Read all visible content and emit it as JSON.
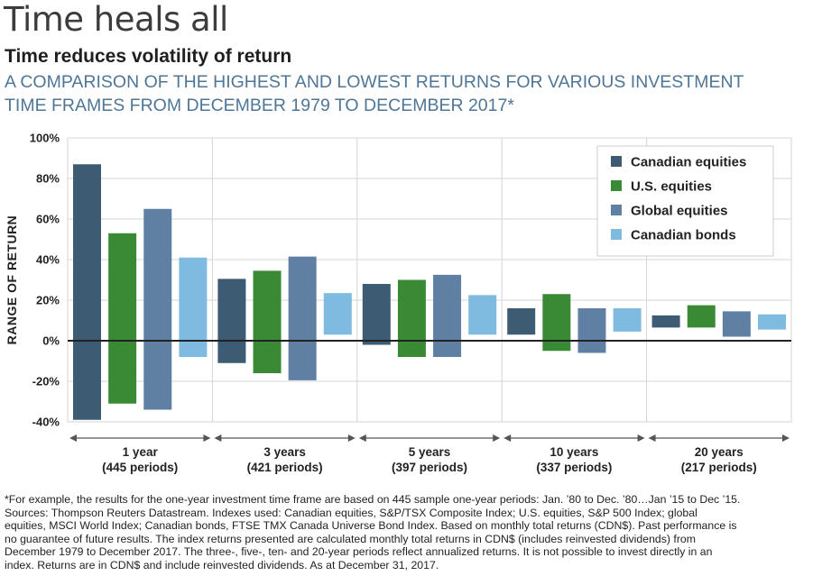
{
  "header": {
    "title": "Time heals all",
    "subtitle": "Time reduces volatility of return",
    "description_lines": [
      "A COMPARISON OF THE HIGHEST AND LOWEST RETURNS FOR VARIOUS INVESTMENT",
      "TIME FRAMES FROM DECEMBER 1979 TO DECEMBER 2017*"
    ]
  },
  "chart_data": {
    "type": "bar",
    "subtype": "floating-range",
    "ylabel": "RANGE OF RETURN",
    "ylim": [
      -40,
      100
    ],
    "yticks": [
      -40,
      -20,
      0,
      20,
      40,
      60,
      80,
      100
    ],
    "ytick_labels": [
      "-40%",
      "-20%",
      "0%",
      "20%",
      "40%",
      "60%",
      "80%",
      "100%"
    ],
    "grid": true,
    "legend_position": "top-right",
    "groups": [
      {
        "label": "1 year",
        "sublabel": "(445 periods)"
      },
      {
        "label": "3 years",
        "sublabel": "(421 periods)"
      },
      {
        "label": "5 years",
        "sublabel": "(397 periods)"
      },
      {
        "label": "10 years",
        "sublabel": "(337 periods)"
      },
      {
        "label": "20 years",
        "sublabel": "(217 periods)"
      }
    ],
    "series": [
      {
        "name": "Canadian equities",
        "color": "#3d5b72",
        "high": [
          87,
          30.5,
          28,
          16,
          12.5
        ],
        "low": [
          -39,
          -11,
          -2,
          3,
          6.5
        ]
      },
      {
        "name": "U.S. equities",
        "color": "#3a8a35",
        "high": [
          53,
          34.5,
          30,
          23,
          17.5
        ],
        "low": [
          -31,
          -16,
          -8,
          -5,
          6.5
        ]
      },
      {
        "name": "Global equities",
        "color": "#5f80a3",
        "high": [
          65,
          41.5,
          32.5,
          16,
          14.5
        ],
        "low": [
          -34,
          -19.5,
          -8,
          -6,
          2
        ]
      },
      {
        "name": "Canadian bonds",
        "color": "#7fbbe0",
        "high": [
          41,
          23.5,
          22.5,
          16,
          13
        ],
        "low": [
          -8,
          3,
          3,
          4.5,
          5.5
        ]
      }
    ]
  },
  "footnote_lines": [
    "*For example, the results for the one-year investment time frame are based on 445 sample one-year periods: Jan. ’80 to Dec. ’80…Jan ’15 to Dec ’15.",
    "Sources: Thompson Reuters Datastream. Indexes used: Canadian equities, S&P/TSX Composite Index; U.S. equities, S&P 500 Index; global",
    "equities, MSCI World Index; Canadian bonds, FTSE TMX Canada Universe Bond Index. Based on monthly total returns (CDN$). Past performance is",
    "no guarantee of future results. The index returns presented are calculated monthly total returns in CDN$ (includes reinvested dividends) from",
    "December 1979 to December 2017. The three-, five-, ten- and 20-year periods reflect annualized returns. It is not possible to invest directly in an",
    "index. Returns are in CDN$ and include reinvested dividends. As at December 31, 2017."
  ]
}
